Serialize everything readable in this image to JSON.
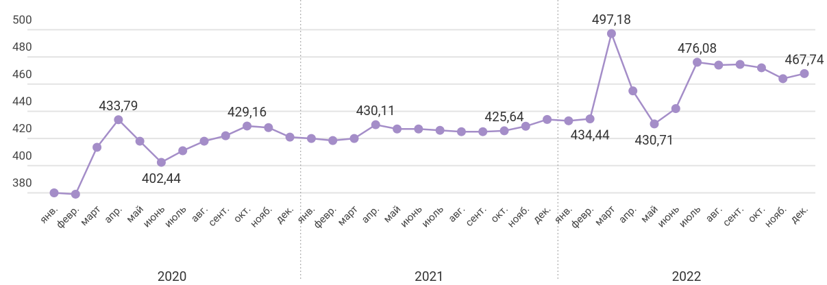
{
  "chart_data": {
    "type": "line",
    "categories": [
      "янв.",
      "февр.",
      "март",
      "апр.",
      "май",
      "июнь",
      "июль",
      "авг.",
      "сент.",
      "окт.",
      "нояб.",
      "дек.",
      "янв.",
      "февр.",
      "март",
      "апр.",
      "май",
      "июнь",
      "июль",
      "авг.",
      "сент.",
      "окт.",
      "нояб.",
      "дек.",
      "янв.",
      "февр.",
      "март",
      "апр.",
      "май",
      "июнь",
      "июль",
      "авг.",
      "сент.",
      "окт.",
      "нояб.",
      "дек."
    ],
    "years": [
      "2020",
      "2021",
      "2022"
    ],
    "series": [
      {
        "color": "#a48dc8",
        "values": [
          380,
          379,
          413.5,
          433.79,
          418,
          402.44,
          411,
          418,
          422,
          429.16,
          428,
          421,
          420,
          418.5,
          420,
          430.11,
          427,
          427,
          426,
          425,
          425,
          425.64,
          429,
          434,
          433,
          434.44,
          497.18,
          455,
          430.71,
          442,
          476.08,
          474,
          474.5,
          472,
          464,
          467.74
        ],
        "value_labels": [
          null,
          null,
          null,
          "433,79",
          null,
          "402,44",
          null,
          null,
          null,
          "429,16",
          null,
          null,
          null,
          null,
          null,
          "430,11",
          null,
          null,
          null,
          null,
          null,
          "425,64",
          null,
          null,
          null,
          "434,44",
          "497,18",
          null,
          "430,71",
          null,
          "476,08",
          null,
          null,
          null,
          null,
          "467,74"
        ]
      }
    ],
    "ylim": [
      370,
      505
    ],
    "yticks": [
      380,
      400,
      420,
      440,
      460,
      480,
      500
    ],
    "grid": true
  }
}
